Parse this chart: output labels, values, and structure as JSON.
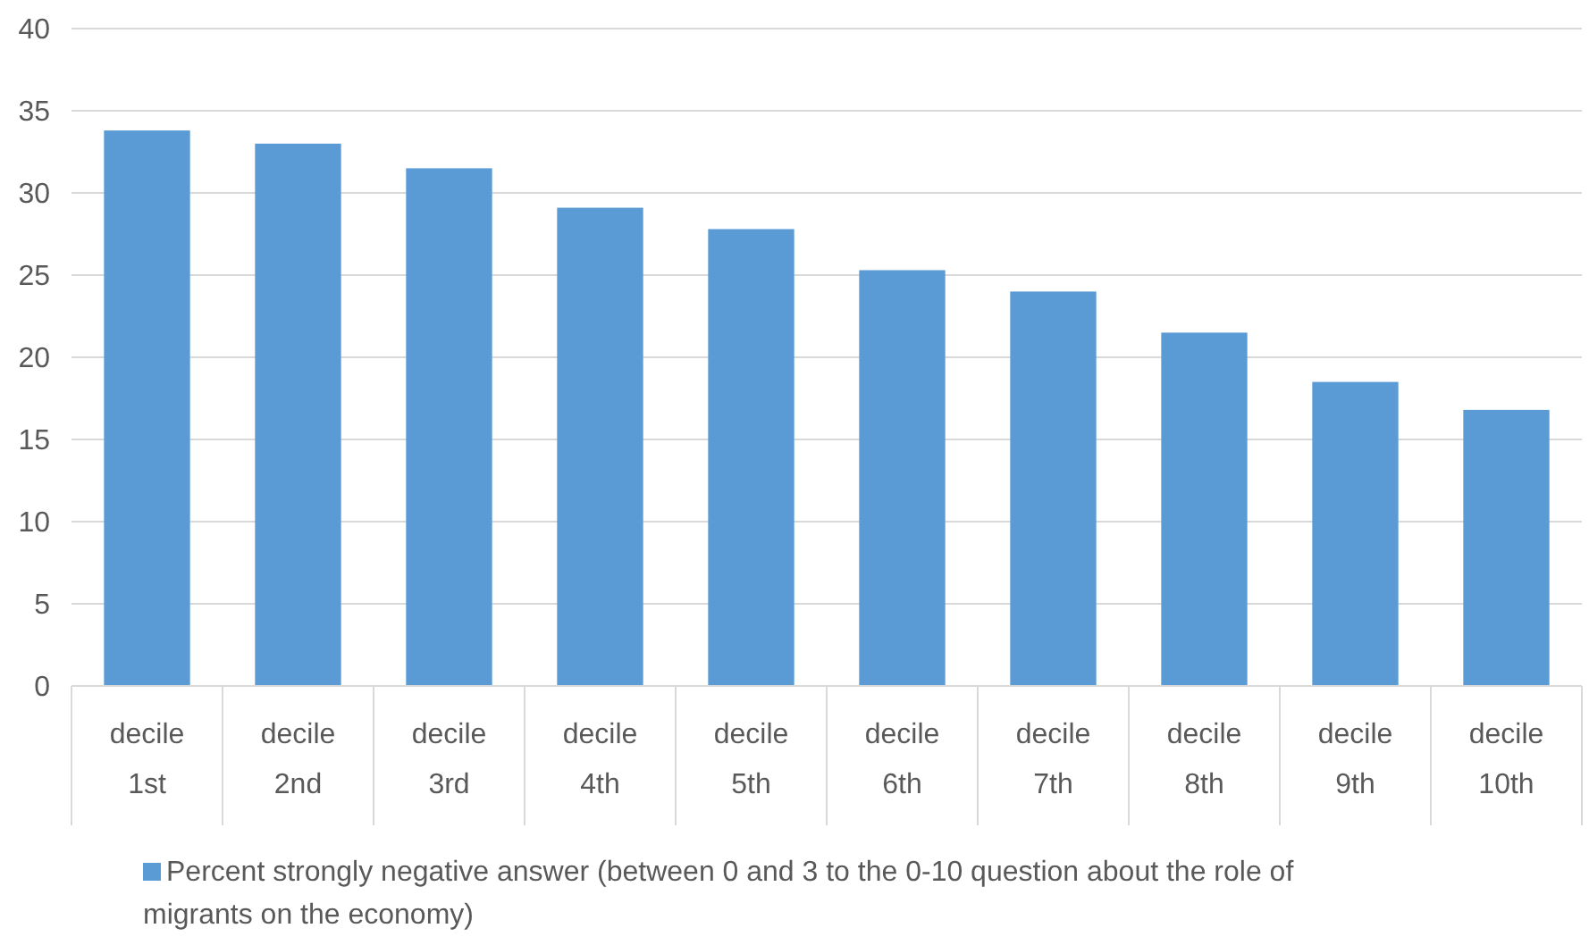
{
  "chart_data": {
    "type": "bar",
    "categories": [
      "decile 1st",
      "decile 2nd",
      "decile 3rd",
      "decile 4th",
      "decile 5th",
      "decile 6th",
      "decile 7th",
      "decile 8th",
      "decile 9th",
      "decile 10th"
    ],
    "series": [
      {
        "name": "Percent strongly negative answer (between 0 and 3 to the 0-10 question about the role of migrants on the economy)",
        "color": "#5b9bd5",
        "values": [
          33.8,
          33.0,
          31.5,
          29.1,
          27.8,
          25.3,
          24.0,
          21.5,
          18.5,
          16.8
        ]
      }
    ],
    "ylim": [
      0,
      40
    ],
    "yticks": [
      0,
      5,
      10,
      15,
      20,
      25,
      30,
      35,
      40
    ],
    "grid": "y",
    "legend": "bottom"
  }
}
